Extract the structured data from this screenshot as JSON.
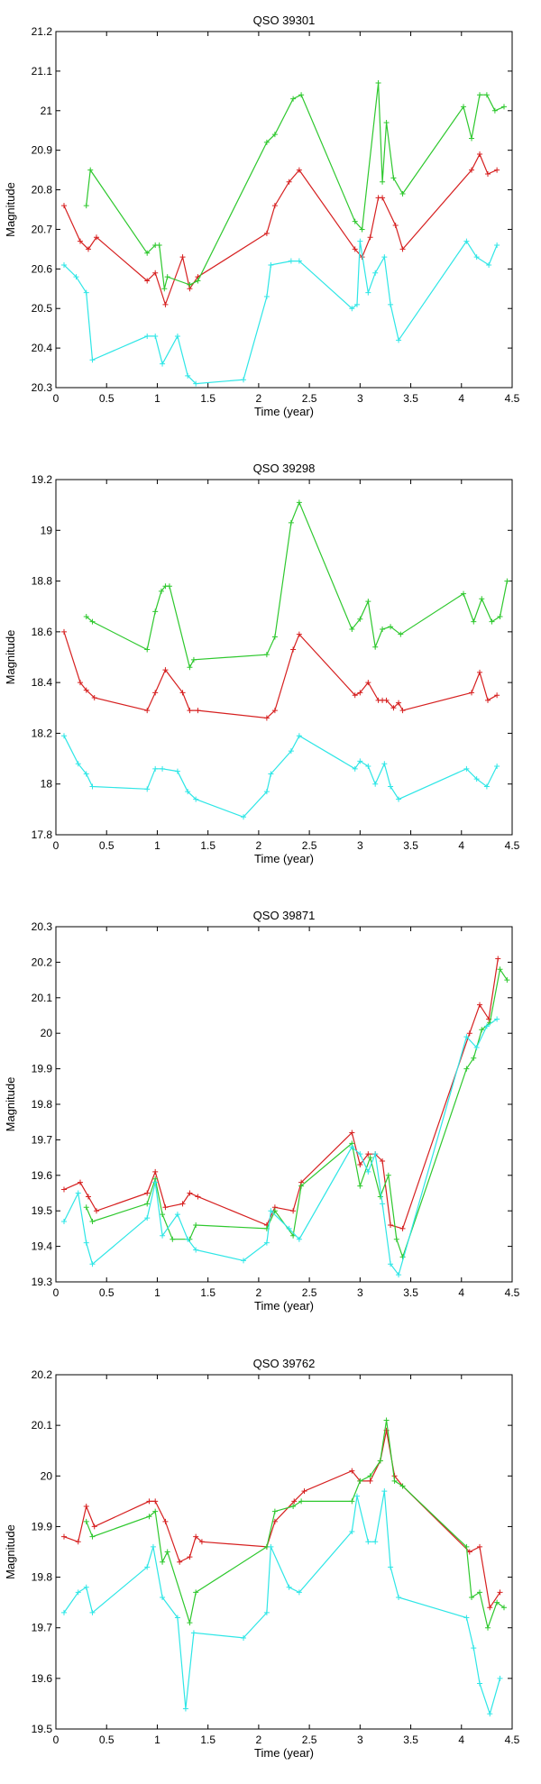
{
  "colors": {
    "red": "#d62020",
    "green": "#2ec82e",
    "cyan": "#2ee6e6",
    "axis": "#000000"
  },
  "chart_data": [
    {
      "type": "line",
      "title": "QSO 39301",
      "xlabel": "Time (year)",
      "ylabel": "Magnitude",
      "xlim": [
        0,
        4.5
      ],
      "ylim": [
        20.3,
        21.2
      ],
      "xticks": [
        0,
        0.5,
        1,
        1.5,
        2,
        2.5,
        3,
        3.5,
        4,
        4.5
      ],
      "xtick_labels": [
        "0",
        "0.5",
        "1",
        "1.5",
        "2",
        "2.5",
        "3",
        "3.5",
        "4",
        "4.5"
      ],
      "yticks": [
        20.3,
        20.4,
        20.5,
        20.6,
        20.7,
        20.8,
        20.9,
        21,
        21.1,
        21.2
      ],
      "ytick_labels": [
        "20.3",
        "20.4",
        "20.5",
        "20.6",
        "20.7",
        "20.8",
        "20.9",
        "21",
        "21.1",
        "21.2"
      ],
      "series": [
        {
          "name": "red",
          "color": "#d62020",
          "x": [
            0.08,
            0.24,
            0.32,
            0.4,
            0.9,
            0.98,
            1.08,
            1.25,
            1.32,
            1.4,
            2.08,
            2.16,
            2.3,
            2.4,
            2.95,
            3.02,
            3.1,
            3.18,
            3.22,
            3.35,
            3.42,
            4.1,
            4.18,
            4.26,
            4.35
          ],
          "y": [
            20.76,
            20.67,
            20.65,
            20.68,
            20.57,
            20.59,
            20.51,
            20.63,
            20.55,
            20.58,
            20.69,
            20.76,
            20.82,
            20.85,
            20.65,
            20.63,
            20.68,
            20.78,
            20.78,
            20.71,
            20.65,
            20.85,
            20.89,
            20.84,
            20.85
          ]
        },
        {
          "name": "green",
          "color": "#2ec82e",
          "x": [
            0.3,
            0.34,
            0.9,
            0.98,
            1.02,
            1.07,
            1.1,
            1.32,
            1.4,
            2.08,
            2.16,
            2.34,
            2.42,
            2.95,
            3.02,
            3.18,
            3.22,
            3.26,
            3.33,
            3.42,
            4.02,
            4.1,
            4.18,
            4.25,
            4.33,
            4.42
          ],
          "y": [
            20.76,
            20.85,
            20.64,
            20.66,
            20.66,
            20.55,
            20.58,
            20.56,
            20.57,
            20.92,
            20.94,
            21.03,
            21.04,
            20.72,
            20.7,
            21.07,
            20.82,
            20.97,
            20.83,
            20.79,
            21.01,
            20.93,
            21.04,
            21.04,
            21.0,
            21.01
          ]
        },
        {
          "name": "cyan",
          "color": "#2ee6e6",
          "x": [
            0.08,
            0.2,
            0.3,
            0.36,
            0.9,
            0.98,
            1.05,
            1.2,
            1.3,
            1.38,
            1.85,
            2.08,
            2.12,
            2.32,
            2.4,
            2.92,
            2.97,
            3.0,
            3.08,
            3.15,
            3.24,
            3.3,
            3.38,
            4.05,
            4.15,
            4.27,
            4.35
          ],
          "y": [
            20.61,
            20.58,
            20.54,
            20.37,
            20.43,
            20.43,
            20.36,
            20.43,
            20.33,
            20.31,
            20.32,
            20.53,
            20.61,
            20.62,
            20.62,
            20.5,
            20.51,
            20.67,
            20.54,
            20.59,
            20.63,
            20.51,
            20.42,
            20.67,
            20.63,
            20.61,
            20.66
          ]
        }
      ]
    },
    {
      "type": "line",
      "title": "QSO 39298",
      "xlabel": "Time (year)",
      "ylabel": "Magnitude",
      "xlim": [
        0,
        4.5
      ],
      "ylim": [
        17.8,
        19.2
      ],
      "xticks": [
        0,
        0.5,
        1,
        1.5,
        2,
        2.5,
        3,
        3.5,
        4,
        4.5
      ],
      "xtick_labels": [
        "0",
        "0.5",
        "1",
        "1.5",
        "2",
        "2.5",
        "3",
        "3.5",
        "4",
        "4.5"
      ],
      "yticks": [
        17.8,
        18,
        18.2,
        18.4,
        18.6,
        18.8,
        19,
        19.2
      ],
      "ytick_labels": [
        "17.8",
        "18",
        "18.2",
        "18.4",
        "18.6",
        "18.8",
        "19",
        "19.2"
      ],
      "series": [
        {
          "name": "red",
          "color": "#d62020",
          "x": [
            0.08,
            0.24,
            0.3,
            0.38,
            0.9,
            0.98,
            1.08,
            1.25,
            1.32,
            1.4,
            2.08,
            2.16,
            2.34,
            2.4,
            2.95,
            3.0,
            3.08,
            3.18,
            3.22,
            3.26,
            3.33,
            3.38,
            3.42,
            4.1,
            4.18,
            4.26,
            4.35
          ],
          "y": [
            18.6,
            18.4,
            18.37,
            18.34,
            18.29,
            18.36,
            18.45,
            18.36,
            18.29,
            18.29,
            18.26,
            18.29,
            18.53,
            18.59,
            18.35,
            18.36,
            18.4,
            18.33,
            18.33,
            18.33,
            18.3,
            18.32,
            18.29,
            18.36,
            18.44,
            18.33,
            18.35
          ]
        },
        {
          "name": "green",
          "color": "#2ec82e",
          "x": [
            0.3,
            0.36,
            0.9,
            0.98,
            1.04,
            1.08,
            1.12,
            1.32,
            1.36,
            2.08,
            2.16,
            2.32,
            2.4,
            2.92,
            3.0,
            3.08,
            3.15,
            3.22,
            3.3,
            3.4,
            4.02,
            4.12,
            4.2,
            4.3,
            4.38,
            4.45
          ],
          "y": [
            18.66,
            18.64,
            18.53,
            18.68,
            18.76,
            18.78,
            18.78,
            18.46,
            18.49,
            18.51,
            18.58,
            19.03,
            19.11,
            18.61,
            18.65,
            18.72,
            18.54,
            18.61,
            18.62,
            18.59,
            18.75,
            18.64,
            18.73,
            18.64,
            18.66,
            18.8
          ]
        },
        {
          "name": "cyan",
          "color": "#2ee6e6",
          "x": [
            0.08,
            0.22,
            0.3,
            0.36,
            0.9,
            0.98,
            1.05,
            1.2,
            1.3,
            1.38,
            1.85,
            2.08,
            2.12,
            2.32,
            2.4,
            2.95,
            3.0,
            3.08,
            3.15,
            3.24,
            3.3,
            3.38,
            4.05,
            4.15,
            4.25,
            4.35
          ],
          "y": [
            18.19,
            18.08,
            18.04,
            17.99,
            17.98,
            18.06,
            18.06,
            18.05,
            17.97,
            17.94,
            17.87,
            17.97,
            18.04,
            18.13,
            18.19,
            18.06,
            18.09,
            18.07,
            18.0,
            18.08,
            17.99,
            17.94,
            18.06,
            18.02,
            17.99,
            18.07
          ]
        }
      ]
    },
    {
      "type": "line",
      "title": "QSO 39871",
      "xlabel": "Time (year)",
      "ylabel": "Magnitude",
      "xlim": [
        0,
        4.5
      ],
      "ylim": [
        19.3,
        20.3
      ],
      "xticks": [
        0,
        0.5,
        1,
        1.5,
        2,
        2.5,
        3,
        3.5,
        4,
        4.5
      ],
      "xtick_labels": [
        "0",
        "0.5",
        "1",
        "1.5",
        "2",
        "2.5",
        "3",
        "3.5",
        "4",
        "4.5"
      ],
      "yticks": [
        19.3,
        19.4,
        19.5,
        19.6,
        19.7,
        19.8,
        19.9,
        20,
        20.1,
        20.2,
        20.3
      ],
      "ytick_labels": [
        "19.3",
        "19.4",
        "19.5",
        "19.6",
        "19.7",
        "19.8",
        "19.9",
        "20",
        "20.1",
        "20.2",
        "20.3"
      ],
      "series": [
        {
          "name": "red",
          "color": "#d62020",
          "x": [
            0.08,
            0.24,
            0.32,
            0.4,
            0.9,
            0.98,
            1.08,
            1.25,
            1.32,
            1.4,
            2.08,
            2.16,
            2.34,
            2.42,
            2.92,
            3.0,
            3.08,
            3.15,
            3.22,
            3.3,
            3.42,
            4.08,
            4.18,
            4.27,
            4.36
          ],
          "y": [
            19.56,
            19.58,
            19.54,
            19.5,
            19.55,
            19.61,
            19.51,
            19.52,
            19.55,
            19.54,
            19.46,
            19.51,
            19.5,
            19.58,
            19.72,
            19.63,
            19.66,
            19.66,
            19.64,
            19.46,
            19.45,
            20.0,
            20.08,
            20.04,
            20.21
          ]
        },
        {
          "name": "green",
          "color": "#2ec82e",
          "x": [
            0.3,
            0.36,
            0.9,
            0.98,
            1.05,
            1.15,
            1.32,
            1.38,
            2.08,
            2.16,
            2.34,
            2.42,
            2.92,
            3.0,
            3.1,
            3.2,
            3.28,
            3.36,
            3.42,
            4.05,
            4.12,
            4.2,
            4.28,
            4.38,
            4.45
          ],
          "y": [
            19.51,
            19.47,
            19.52,
            19.59,
            19.49,
            19.42,
            19.42,
            19.46,
            19.45,
            19.5,
            19.43,
            19.57,
            19.69,
            19.57,
            19.65,
            19.54,
            19.6,
            19.42,
            19.37,
            19.9,
            19.93,
            20.01,
            20.03,
            20.18,
            20.15
          ]
        },
        {
          "name": "cyan",
          "color": "#2ee6e6",
          "x": [
            0.08,
            0.22,
            0.3,
            0.36,
            0.9,
            0.98,
            1.05,
            1.2,
            1.3,
            1.38,
            1.85,
            2.08,
            2.12,
            2.3,
            2.4,
            2.92,
            3.0,
            3.08,
            3.15,
            3.22,
            3.3,
            3.38,
            4.05,
            4.15,
            4.25,
            4.35
          ],
          "y": [
            19.47,
            19.55,
            19.41,
            19.35,
            19.48,
            19.58,
            19.43,
            19.49,
            19.42,
            19.39,
            19.36,
            19.41,
            19.5,
            19.45,
            19.42,
            19.68,
            19.66,
            19.61,
            19.66,
            19.52,
            19.35,
            19.32,
            19.99,
            19.96,
            20.02,
            20.04
          ]
        }
      ]
    },
    {
      "type": "line",
      "title": "QSO 39762",
      "xlabel": "Time (year)",
      "ylabel": "Magnitude",
      "xlim": [
        0,
        4.5
      ],
      "ylim": [
        19.5,
        20.2
      ],
      "xticks": [
        0,
        0.5,
        1,
        1.5,
        2,
        2.5,
        3,
        3.5,
        4,
        4.5
      ],
      "xtick_labels": [
        "0",
        "0.5",
        "1",
        "1.5",
        "2",
        "2.5",
        "3",
        "3.5",
        "4",
        "4.5"
      ],
      "yticks": [
        19.5,
        19.6,
        19.7,
        19.8,
        19.9,
        20,
        20.1,
        20.2
      ],
      "ytick_labels": [
        "19.5",
        "19.6",
        "19.7",
        "19.8",
        "19.9",
        "20",
        "20.1",
        "20.2"
      ],
      "series": [
        {
          "name": "red",
          "color": "#d62020",
          "x": [
            0.08,
            0.22,
            0.3,
            0.38,
            0.92,
            0.98,
            1.08,
            1.22,
            1.32,
            1.38,
            1.44,
            2.08,
            2.16,
            2.35,
            2.45,
            2.92,
            3.0,
            3.1,
            3.2,
            3.26,
            3.34,
            3.42,
            4.08,
            4.18,
            4.28,
            4.38
          ],
          "y": [
            19.88,
            19.87,
            19.94,
            19.9,
            19.95,
            19.95,
            19.91,
            19.83,
            19.84,
            19.88,
            19.87,
            19.86,
            19.91,
            19.95,
            19.97,
            20.01,
            19.99,
            19.99,
            20.03,
            20.09,
            20.0,
            19.98,
            19.85,
            19.86,
            19.74,
            19.77
          ]
        },
        {
          "name": "green",
          "color": "#2ec82e",
          "x": [
            0.3,
            0.36,
            0.92,
            0.98,
            1.05,
            1.1,
            1.32,
            1.38,
            2.08,
            2.16,
            2.34,
            2.42,
            2.92,
            3.0,
            3.1,
            3.2,
            3.26,
            3.34,
            3.42,
            4.05,
            4.1,
            4.18,
            4.26,
            4.35,
            4.42
          ],
          "y": [
            19.91,
            19.88,
            19.92,
            19.93,
            19.83,
            19.85,
            19.71,
            19.77,
            19.86,
            19.93,
            19.94,
            19.95,
            19.95,
            19.99,
            20.0,
            20.03,
            20.11,
            19.99,
            19.98,
            19.86,
            19.76,
            19.77,
            19.7,
            19.75,
            19.74
          ]
        },
        {
          "name": "cyan",
          "color": "#2ee6e6",
          "x": [
            0.08,
            0.22,
            0.3,
            0.36,
            0.9,
            0.96,
            1.05,
            1.2,
            1.28,
            1.36,
            1.85,
            2.08,
            2.12,
            2.3,
            2.4,
            2.92,
            2.97,
            3.08,
            3.15,
            3.24,
            3.3,
            3.38,
            4.05,
            4.12,
            4.18,
            4.28,
            4.38
          ],
          "y": [
            19.73,
            19.77,
            19.78,
            19.73,
            19.82,
            19.86,
            19.76,
            19.72,
            19.54,
            19.69,
            19.68,
            19.73,
            19.86,
            19.78,
            19.77,
            19.89,
            19.96,
            19.87,
            19.87,
            19.97,
            19.82,
            19.76,
            19.72,
            19.66,
            19.59,
            19.53,
            19.6
          ]
        }
      ]
    }
  ]
}
